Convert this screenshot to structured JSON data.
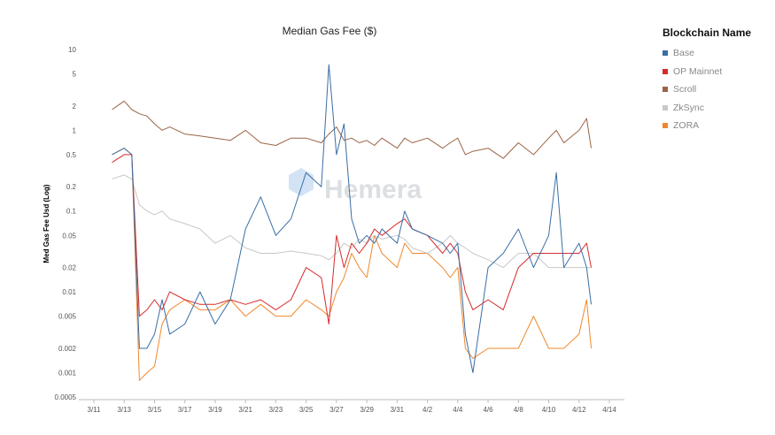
{
  "chart_data": {
    "type": "line",
    "title": "Median Gas Fee ($)",
    "xlabel": "",
    "ylabel": "Med Gas Fee Usd (Log)",
    "yscale": "log",
    "ylim": [
      0.0005,
      10
    ],
    "ytick_labels": [
      "10",
      "5",
      "2",
      "1",
      "0.5",
      "0.2",
      "0.1",
      "0.05",
      "0.02",
      "0.01",
      "0.005",
      "0.002",
      "0.001",
      "0.0005"
    ],
    "yticks": [
      10,
      5,
      2,
      1,
      0.5,
      0.2,
      0.1,
      0.05,
      0.02,
      0.01,
      0.005,
      0.002,
      0.001,
      0.0005
    ],
    "x_start": "3/11",
    "xlim_days": [
      0,
      34
    ],
    "xtick_labels": [
      "3/11",
      "3/13",
      "3/15",
      "3/17",
      "3/19",
      "3/21",
      "3/23",
      "3/25",
      "3/27",
      "3/29",
      "3/31",
      "4/2",
      "4/4",
      "4/6",
      "4/8",
      "4/10",
      "4/12",
      "4/14"
    ],
    "xtick_days": [
      0,
      2,
      4,
      6,
      8,
      10,
      12,
      14,
      16,
      18,
      20,
      22,
      24,
      26,
      28,
      30,
      32,
      34
    ],
    "x_days": [
      1.2,
      2,
      2.5,
      3,
      3.5,
      4,
      4.5,
      5,
      6,
      7,
      8,
      9,
      10,
      11,
      12,
      13,
      14,
      15,
      15.5,
      16,
      16.5,
      17,
      17.5,
      18,
      18.5,
      19,
      20,
      20.5,
      21,
      22,
      23,
      23.5,
      24,
      24.5,
      25,
      26,
      27,
      28,
      29,
      30,
      30.5,
      31,
      32,
      32.5,
      32.8
    ],
    "series": [
      {
        "name": "Base",
        "color": "#3a6ea5",
        "values": [
          0.5,
          0.6,
          0.5,
          0.002,
          0.002,
          0.003,
          0.008,
          0.003,
          0.004,
          0.01,
          0.004,
          0.008,
          0.06,
          0.15,
          0.05,
          0.08,
          0.3,
          0.2,
          6.5,
          0.5,
          1.2,
          0.08,
          0.04,
          0.05,
          0.04,
          0.06,
          0.04,
          0.1,
          0.06,
          0.05,
          0.04,
          0.03,
          0.04,
          0.003,
          0.001,
          0.02,
          0.03,
          0.06,
          0.02,
          0.05,
          0.3,
          0.02,
          0.04,
          0.02,
          0.007
        ]
      },
      {
        "name": "OP Mainnet",
        "color": "#d62b2b",
        "values": [
          0.4,
          0.5,
          0.5,
          0.005,
          0.006,
          0.008,
          0.006,
          0.01,
          0.008,
          0.007,
          0.007,
          0.008,
          0.007,
          0.008,
          0.006,
          0.008,
          0.02,
          0.015,
          0.004,
          0.05,
          0.02,
          0.04,
          0.03,
          0.04,
          0.06,
          0.05,
          0.07,
          0.08,
          0.06,
          0.05,
          0.03,
          0.04,
          0.03,
          0.01,
          0.006,
          0.008,
          0.006,
          0.02,
          0.03,
          0.03,
          0.03,
          0.03,
          0.03,
          0.04,
          0.02
        ]
      },
      {
        "name": "Scroll",
        "color": "#9a6446",
        "values": [
          1.8,
          2.3,
          1.8,
          1.6,
          1.5,
          1.2,
          1.0,
          1.1,
          0.9,
          0.85,
          0.8,
          0.75,
          1.0,
          0.7,
          0.65,
          0.8,
          0.8,
          0.7,
          0.9,
          1.1,
          0.75,
          0.8,
          0.7,
          0.75,
          0.65,
          0.8,
          0.6,
          0.8,
          0.7,
          0.8,
          0.6,
          0.7,
          0.8,
          0.5,
          0.55,
          0.6,
          0.45,
          0.7,
          0.5,
          0.8,
          1.0,
          0.7,
          1.0,
          1.4,
          0.6
        ]
      },
      {
        "name": "ZkSync",
        "color": "#c8c8c8",
        "values": [
          0.25,
          0.28,
          0.25,
          0.12,
          0.1,
          0.09,
          0.1,
          0.08,
          0.07,
          0.06,
          0.04,
          0.05,
          0.035,
          0.03,
          0.03,
          0.032,
          0.03,
          0.028,
          0.025,
          0.03,
          0.04,
          0.035,
          0.045,
          0.04,
          0.05,
          0.045,
          0.05,
          0.045,
          0.035,
          0.03,
          0.04,
          0.05,
          0.04,
          0.035,
          0.03,
          0.025,
          0.02,
          0.03,
          0.03,
          0.02,
          0.02,
          0.02,
          0.02,
          0.02,
          0.02
        ]
      },
      {
        "name": "ZORA",
        "color": "#f0882b",
        "values": [
          0.5,
          0.6,
          0.5,
          0.0008,
          0.001,
          0.0012,
          0.004,
          0.006,
          0.008,
          0.006,
          0.006,
          0.008,
          0.005,
          0.007,
          0.005,
          0.005,
          0.008,
          0.006,
          0.005,
          0.01,
          0.015,
          0.03,
          0.02,
          0.015,
          0.05,
          0.03,
          0.02,
          0.04,
          0.03,
          0.03,
          0.02,
          0.015,
          0.02,
          0.002,
          0.0015,
          0.002,
          0.002,
          0.002,
          0.005,
          0.002,
          0.002,
          0.002,
          0.003,
          0.008,
          0.002
        ]
      }
    ],
    "legend": {
      "title": "Blockchain Name",
      "position": "right"
    },
    "grid": false
  },
  "watermark": {
    "text": "Hemera"
  }
}
